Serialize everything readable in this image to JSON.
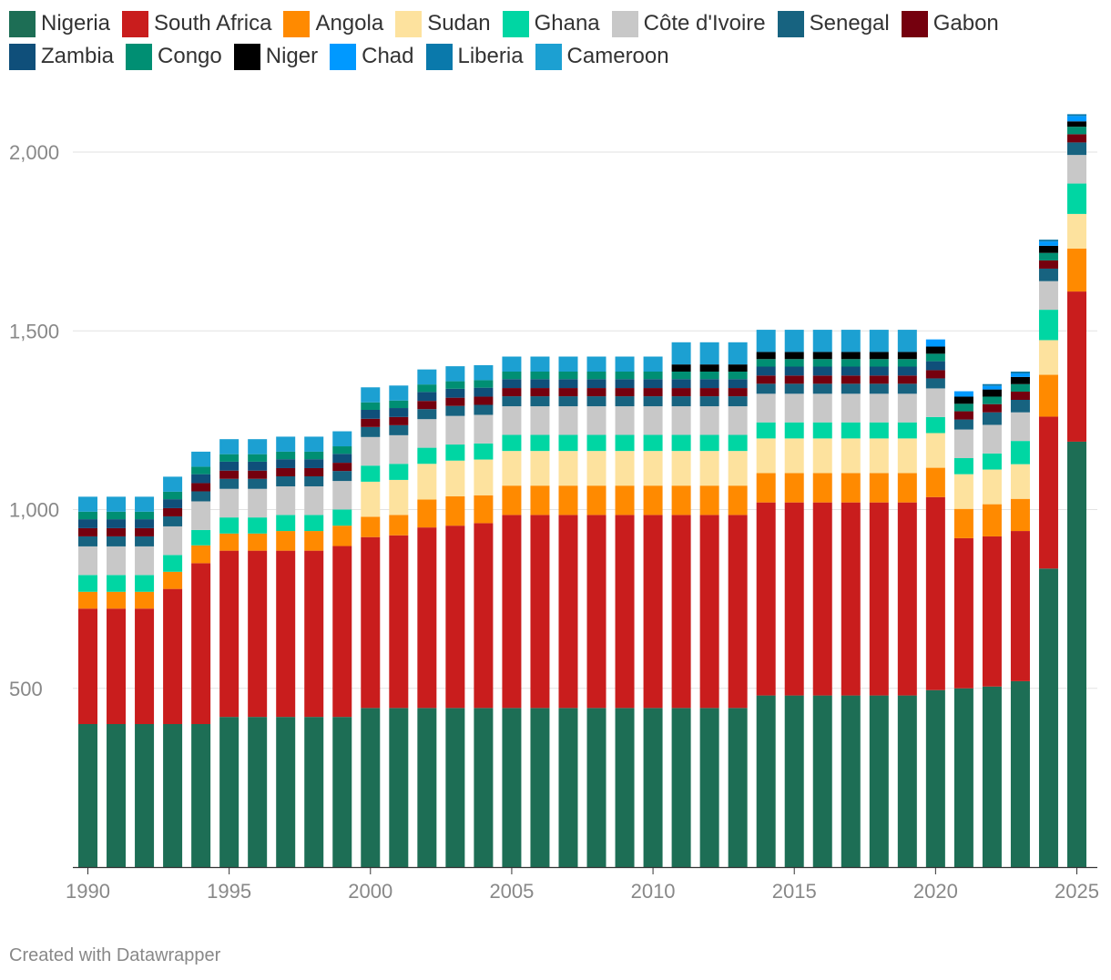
{
  "chart_data": {
    "type": "bar",
    "stacked": true,
    "title": "",
    "xlabel": "",
    "ylabel": "",
    "ylim": [
      0,
      2150
    ],
    "yticks": [
      500,
      1000,
      1500,
      2000
    ],
    "ytick_labels": [
      "500",
      "1,000",
      "1,500",
      "2,000"
    ],
    "xticks": [
      1990,
      1995,
      2000,
      2005,
      2010,
      2015,
      2020,
      2025
    ],
    "xtick_labels": [
      "1990",
      "1995",
      "2000",
      "2005",
      "2010",
      "2015",
      "2020",
      "2025"
    ],
    "legend_position": "top-left",
    "categories": [
      1990,
      1991,
      1992,
      1993,
      1994,
      1995,
      1996,
      1997,
      1998,
      1999,
      2000,
      2001,
      2002,
      2003,
      2004,
      2005,
      2006,
      2007,
      2008,
      2009,
      2010,
      2011,
      2012,
      2013,
      2014,
      2015,
      2016,
      2017,
      2018,
      2019,
      2020,
      2021,
      2022,
      2023,
      2024,
      2025
    ],
    "series": [
      {
        "name": "Nigeria",
        "color": "#1d6e55",
        "values": [
          400,
          400,
          400,
          400,
          400,
          420,
          420,
          420,
          420,
          420,
          445,
          445,
          445,
          445,
          445,
          445,
          445,
          445,
          445,
          445,
          445,
          445,
          445,
          445,
          480,
          480,
          480,
          480,
          480,
          480,
          495,
          500,
          505,
          520,
          835,
          1190
        ]
      },
      {
        "name": "South Africa",
        "color": "#c91d1d",
        "values": [
          323,
          323,
          323,
          378,
          450,
          465,
          465,
          465,
          465,
          478,
          478,
          483,
          505,
          510,
          517,
          540,
          540,
          540,
          540,
          540,
          540,
          540,
          540,
          540,
          540,
          540,
          540,
          540,
          540,
          540,
          540,
          420,
          420,
          420,
          425,
          420
        ]
      },
      {
        "name": "Angola",
        "color": "#ff8a00",
        "values": [
          47,
          47,
          47,
          48,
          50,
          48,
          48,
          55,
          55,
          57,
          57,
          57,
          78,
          82,
          78,
          82,
          82,
          82,
          82,
          82,
          82,
          82,
          82,
          82,
          82,
          82,
          82,
          82,
          82,
          82,
          82,
          82,
          90,
          90,
          117,
          120
        ]
      },
      {
        "name": "Sudan",
        "color": "#fde29e",
        "values": [
          0,
          0,
          0,
          0,
          0,
          0,
          0,
          0,
          0,
          0,
          98,
          98,
          100,
          100,
          100,
          97,
          97,
          97,
          97,
          97,
          97,
          97,
          97,
          97,
          97,
          97,
          97,
          97,
          97,
          97,
          97,
          97,
          97,
          97,
          97,
          97
        ]
      },
      {
        "name": "Ghana",
        "color": "#00d6a3",
        "values": [
          47,
          47,
          47,
          47,
          43,
          45,
          45,
          45,
          45,
          45,
          45,
          45,
          45,
          45,
          45,
          45,
          45,
          45,
          45,
          45,
          45,
          45,
          45,
          45,
          45,
          45,
          45,
          45,
          45,
          45,
          45,
          45,
          45,
          65,
          85,
          85
        ]
      },
      {
        "name": "Côte d'Ivoire",
        "color": "#c8c8c8",
        "values": [
          80,
          80,
          80,
          80,
          80,
          80,
          80,
          80,
          80,
          80,
          80,
          80,
          80,
          80,
          80,
          80,
          80,
          80,
          80,
          80,
          80,
          80,
          80,
          80,
          80,
          80,
          80,
          80,
          80,
          80,
          80,
          80,
          80,
          80,
          80,
          80
        ]
      },
      {
        "name": "Senegal",
        "color": "#176380",
        "values": [
          28,
          28,
          28,
          28,
          28,
          28,
          28,
          28,
          28,
          28,
          28,
          28,
          28,
          28,
          28,
          28,
          28,
          28,
          28,
          28,
          28,
          28,
          28,
          28,
          28,
          28,
          28,
          28,
          28,
          28,
          28,
          28,
          35,
          35,
          35,
          35
        ]
      },
      {
        "name": "Gabon",
        "color": "#75000e",
        "values": [
          23,
          23,
          23,
          23,
          23,
          23,
          23,
          23,
          23,
          23,
          23,
          23,
          23,
          23,
          23,
          23,
          23,
          23,
          23,
          23,
          23,
          23,
          23,
          23,
          23,
          23,
          23,
          23,
          23,
          23,
          23,
          23,
          23,
          23,
          23,
          23
        ]
      },
      {
        "name": "Zambia",
        "color": "#0f4f7a",
        "values": [
          25,
          25,
          25,
          25,
          25,
          25,
          25,
          25,
          25,
          25,
          25,
          25,
          25,
          25,
          25,
          25,
          25,
          25,
          25,
          25,
          25,
          25,
          25,
          25,
          25,
          25,
          25,
          25,
          25,
          25,
          25,
          0,
          0,
          0,
          0,
          0
        ]
      },
      {
        "name": "Congo",
        "color": "#008f73",
        "values": [
          21,
          21,
          21,
          21,
          21,
          21,
          21,
          21,
          21,
          21,
          21,
          21,
          21,
          21,
          21,
          21,
          21,
          21,
          21,
          21,
          21,
          21,
          21,
          21,
          21,
          21,
          21,
          21,
          21,
          21,
          21,
          21,
          21,
          21,
          21,
          21
        ]
      },
      {
        "name": "Niger",
        "color": "#000000",
        "values": [
          0,
          0,
          0,
          0,
          0,
          0,
          0,
          0,
          0,
          0,
          0,
          0,
          0,
          0,
          0,
          0,
          0,
          0,
          0,
          0,
          0,
          20,
          20,
          20,
          20,
          20,
          20,
          20,
          20,
          20,
          20,
          20,
          20,
          20,
          20,
          15
        ]
      },
      {
        "name": "Chad",
        "color": "#0099ff",
        "values": [
          0,
          0,
          0,
          0,
          0,
          0,
          0,
          0,
          0,
          0,
          0,
          0,
          0,
          0,
          0,
          0,
          0,
          0,
          0,
          0,
          0,
          0,
          0,
          0,
          0,
          0,
          0,
          0,
          0,
          0,
          20,
          15,
          10,
          10,
          12,
          15
        ]
      },
      {
        "name": "Liberia",
        "color": "#0a79ab",
        "values": [
          0,
          0,
          0,
          0,
          0,
          0,
          0,
          0,
          0,
          0,
          0,
          0,
          0,
          0,
          0,
          0,
          0,
          0,
          0,
          0,
          0,
          0,
          0,
          0,
          0,
          0,
          0,
          0,
          0,
          0,
          0,
          0,
          5,
          5,
          5,
          5
        ]
      },
      {
        "name": "Cameroon",
        "color": "#1ca0d2",
        "values": [
          42,
          42,
          42,
          42,
          42,
          42,
          42,
          42,
          42,
          42,
          42,
          42,
          42,
          42,
          42,
          42,
          42,
          42,
          42,
          42,
          42,
          62,
          62,
          62,
          62,
          62,
          62,
          62,
          62,
          62,
          0,
          0,
          0,
          0,
          0,
          0
        ]
      }
    ]
  },
  "footer": {
    "text": "Created with Datawrapper"
  }
}
